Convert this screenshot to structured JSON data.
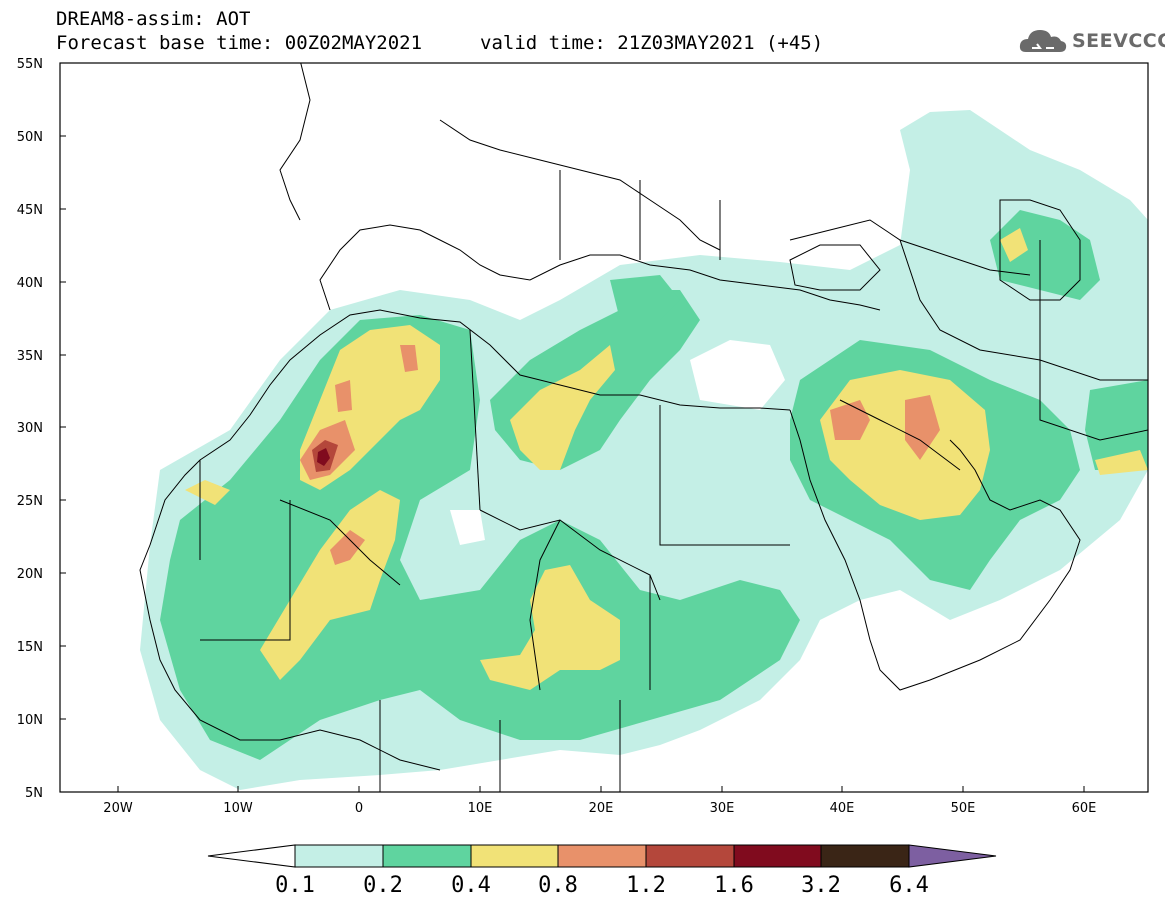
{
  "header": {
    "line1": "DREAM8-assim: AOT",
    "line2_left": "Forecast base time: 00Z02MAY2021",
    "line2_right": "valid time: 21Z03MAY2021 (+45)"
  },
  "logo": {
    "text": "SEEVCCC",
    "icon": "cloud-logo-icon"
  },
  "map": {
    "lat_labels": [
      "55N",
      "50N",
      "45N",
      "40N",
      "35N",
      "30N",
      "25N",
      "20N",
      "15N",
      "10N",
      "5N"
    ],
    "lon_labels": [
      "20W",
      "10W",
      "0",
      "10E",
      "20E",
      "30E",
      "40E",
      "50E",
      "60E"
    ]
  },
  "colorbar": {
    "labels": [
      "0.1",
      "0.2",
      "0.4",
      "0.8",
      "1.2",
      "1.6",
      "3.2",
      "6.4"
    ],
    "colors": [
      "#ffffff",
      "#c4efe6",
      "#5fd49f",
      "#f1e277",
      "#e8916a",
      "#b4473b",
      "#800b1e",
      "#3a2516",
      "#7d5fa1"
    ]
  }
}
